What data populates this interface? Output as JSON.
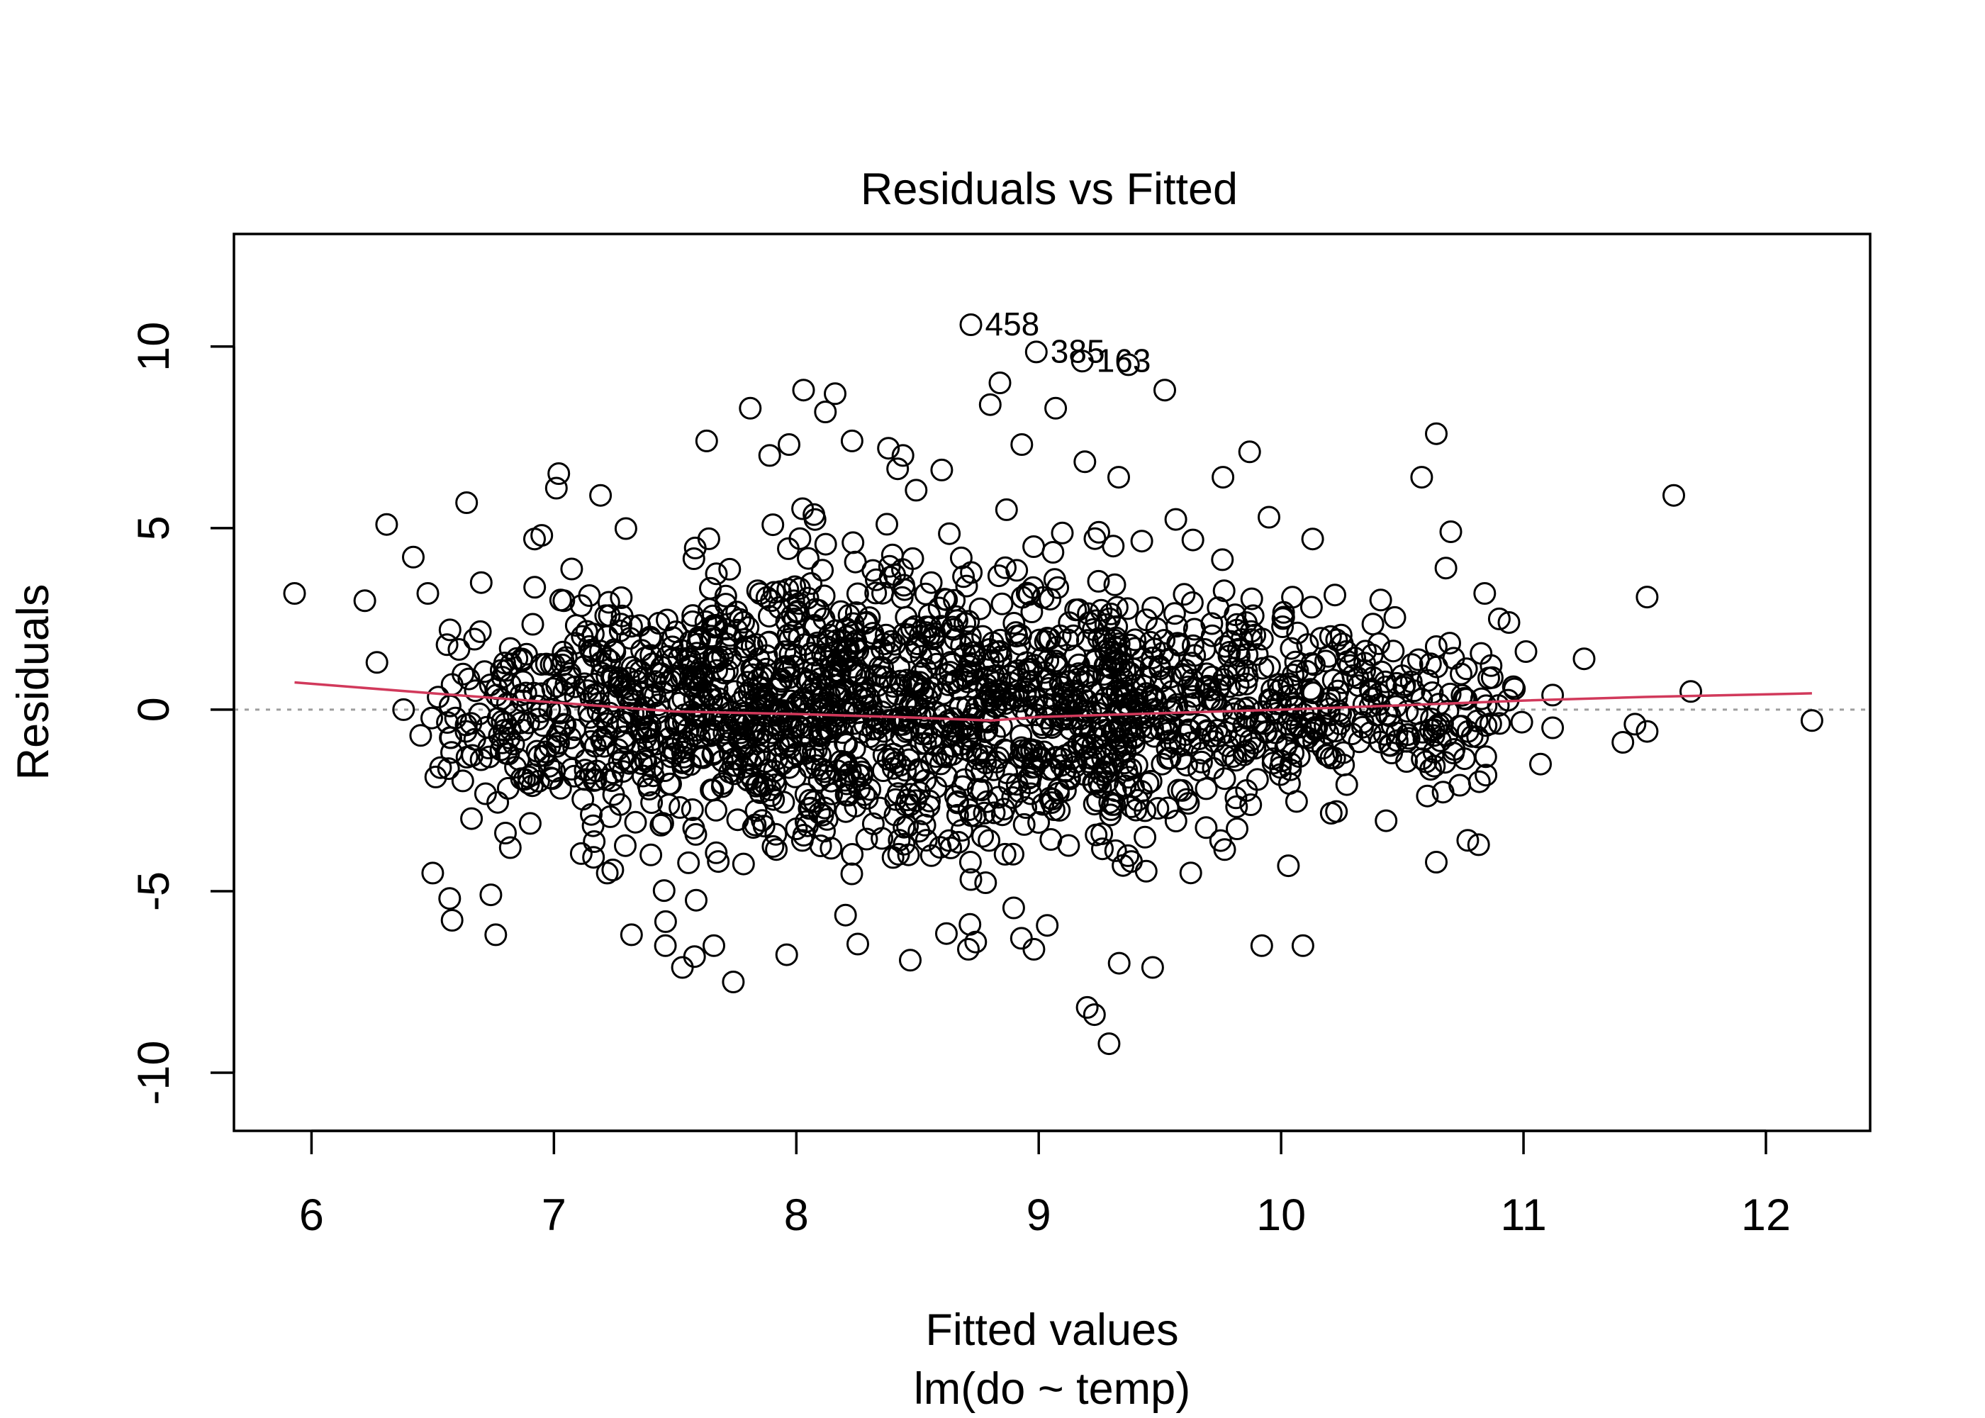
{
  "chart_data": {
    "type": "scatter",
    "title": "Residuals vs Fitted",
    "xlabel": "Fitted values",
    "sublabel": "lm(do ~ temp)",
    "ylabel": "Residuals",
    "xlim": [
      5.68,
      12.43
    ],
    "ylim": [
      -11.6,
      13.1
    ],
    "xticks": [
      "6",
      "7",
      "8",
      "9",
      "10",
      "11",
      "12"
    ],
    "yticks": [
      "-10",
      "-5",
      "0",
      "5",
      "10"
    ],
    "grid": false,
    "zero_line": {
      "y": 0,
      "style": "dotted",
      "color": "#9e9e9e"
    },
    "marker_color": "#000000",
    "smooth_color": "#d1395b",
    "labelled_points": [
      {
        "label": "458",
        "x": 8.72,
        "y": 10.6
      },
      {
        "label": "385",
        "x": 8.99,
        "y": 9.85
      },
      {
        "label": "163",
        "x": 9.18,
        "y": 9.6
      }
    ],
    "points": [
      [
        5.93,
        3.2
      ],
      [
        6.22,
        3.0
      ],
      [
        6.27,
        1.3
      ],
      [
        6.31,
        5.1
      ],
      [
        6.38,
        0.0
      ],
      [
        6.42,
        4.2
      ],
      [
        6.48,
        3.2
      ],
      [
        6.5,
        -4.5
      ],
      [
        6.57,
        -5.2
      ],
      [
        6.58,
        -5.8
      ],
      [
        6.64,
        5.7
      ],
      [
        6.7,
        3.5
      ],
      [
        6.74,
        -5.1
      ],
      [
        6.76,
        -6.2
      ],
      [
        6.66,
        -3.0
      ],
      [
        6.8,
        -3.4
      ],
      [
        6.82,
        -3.8
      ],
      [
        6.92,
        4.7
      ],
      [
        6.95,
        4.8
      ],
      [
        7.02,
        6.5
      ],
      [
        7.01,
        6.1
      ],
      [
        7.22,
        -4.5
      ],
      [
        7.32,
        -6.2
      ],
      [
        7.4,
        -4.0
      ],
      [
        7.46,
        -6.5
      ],
      [
        7.53,
        -7.1
      ],
      [
        7.58,
        -6.8
      ],
      [
        7.66,
        -6.5
      ],
      [
        7.74,
        -7.5
      ],
      [
        7.63,
        7.4
      ],
      [
        7.81,
        8.3
      ],
      [
        7.89,
        7.0
      ],
      [
        7.97,
        7.3
      ],
      [
        8.03,
        8.8
      ],
      [
        8.12,
        8.2
      ],
      [
        8.16,
        8.7
      ],
      [
        8.23,
        7.4
      ],
      [
        8.38,
        7.2
      ],
      [
        8.44,
        7.0
      ],
      [
        8.47,
        -6.9
      ],
      [
        8.6,
        6.6
      ],
      [
        8.71,
        -6.6
      ],
      [
        8.74,
        -6.4
      ],
      [
        8.8,
        8.4
      ],
      [
        8.84,
        9.0
      ],
      [
        8.93,
        7.3
      ],
      [
        8.98,
        -6.6
      ],
      [
        9.07,
        8.3
      ],
      [
        9.2,
        -8.2
      ],
      [
        9.23,
        -8.4
      ],
      [
        9.29,
        -9.2
      ],
      [
        9.33,
        6.4
      ],
      [
        9.37,
        9.5
      ],
      [
        9.47,
        -7.1
      ],
      [
        9.52,
        8.8
      ],
      [
        9.76,
        6.4
      ],
      [
        9.87,
        7.1
      ],
      [
        9.95,
        5.3
      ],
      [
        9.92,
        -6.5
      ],
      [
        10.03,
        -4.3
      ],
      [
        10.09,
        -6.5
      ],
      [
        10.13,
        4.7
      ],
      [
        10.58,
        6.4
      ],
      [
        10.64,
        7.6
      ],
      [
        10.64,
        -4.2
      ],
      [
        10.68,
        3.9
      ],
      [
        10.7,
        4.9
      ],
      [
        10.77,
        -3.6
      ],
      [
        10.84,
        3.2
      ],
      [
        10.9,
        2.5
      ],
      [
        10.94,
        2.4
      ],
      [
        11.01,
        1.6
      ],
      [
        11.07,
        -1.5
      ],
      [
        11.12,
        0.4
      ],
      [
        11.12,
        -0.5
      ],
      [
        11.25,
        1.4
      ],
      [
        11.41,
        -0.9
      ],
      [
        11.46,
        -0.4
      ],
      [
        11.51,
        -0.6
      ],
      [
        11.51,
        3.1
      ],
      [
        11.62,
        5.9
      ],
      [
        11.69,
        0.5
      ],
      [
        12.19,
        -0.3
      ]
    ],
    "smooth_line": [
      [
        5.93,
        0.75
      ],
      [
        6.5,
        0.45
      ],
      [
        7.0,
        0.2
      ],
      [
        7.5,
        -0.05
      ],
      [
        8.0,
        -0.12
      ],
      [
        8.5,
        -0.22
      ],
      [
        8.8,
        -0.3
      ],
      [
        9.0,
        -0.2
      ],
      [
        9.5,
        -0.1
      ],
      [
        10.0,
        0.0
      ],
      [
        10.5,
        0.12
      ],
      [
        11.0,
        0.25
      ],
      [
        11.5,
        0.35
      ],
      [
        12.19,
        0.45
      ]
    ]
  }
}
